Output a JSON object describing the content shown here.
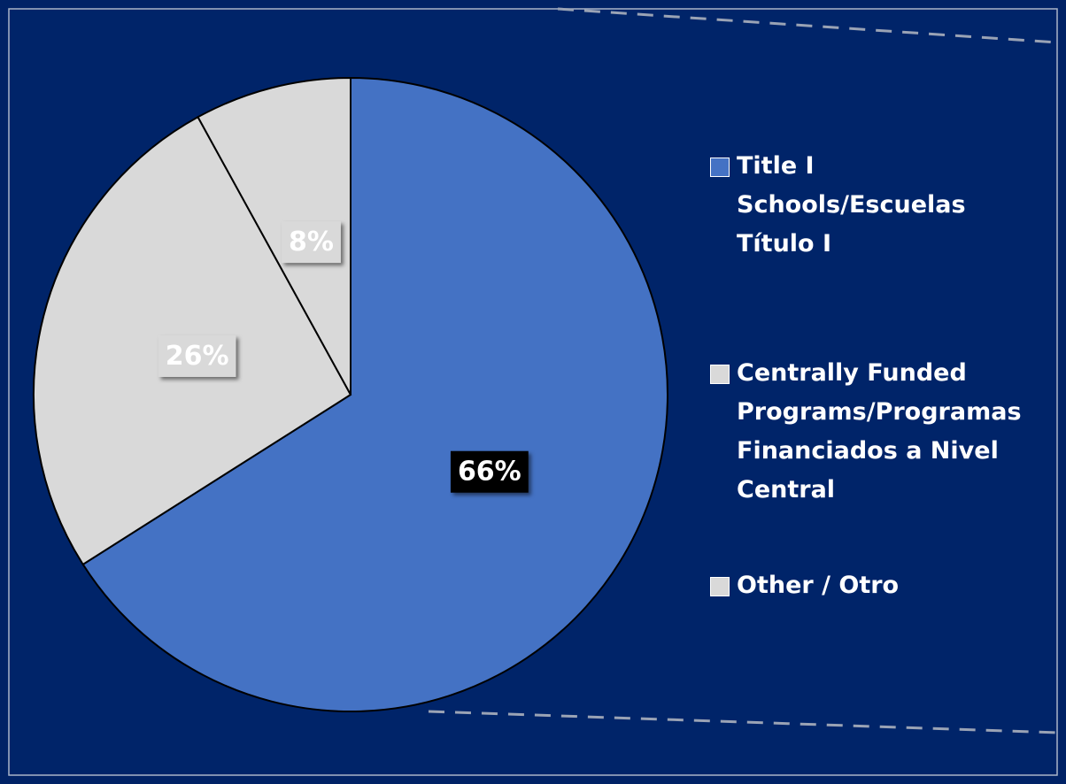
{
  "chart_data": {
    "type": "pie",
    "categories": [
      "Title I Schools/Escuelas Título I",
      "Centrally Funded Programs/Programas Financiados a Nivel Central",
      "Other / Otro"
    ],
    "values": [
      66,
      26,
      8
    ],
    "value_labels": [
      "66%",
      "26%",
      "8%"
    ],
    "colors": [
      "#4472c4",
      "#d9d9d9",
      "#d9d9d9"
    ],
    "legend": "right"
  }
}
